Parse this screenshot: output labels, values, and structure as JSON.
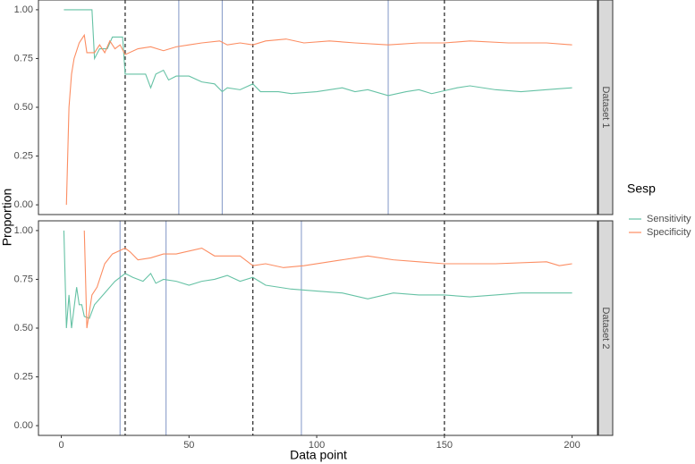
{
  "chart_data": {
    "type": "line",
    "xlabel": "Data point",
    "ylabel": "Proportion",
    "legend_title": "Sesp",
    "legend": [
      {
        "name": "Sensitivity",
        "color": "#66c2a5"
      },
      {
        "name": "Specificity",
        "color": "#fc8d62"
      }
    ],
    "xlim": [
      -8.95,
      209.95
    ],
    "xticks": [
      0,
      50,
      100,
      150,
      200
    ],
    "ylim": [
      -0.05,
      1.05
    ],
    "yticks": [
      {
        "value": 0,
        "label": "0.00"
      },
      {
        "value": 0.25,
        "label": "0.25"
      },
      {
        "value": 0.5,
        "label": "0.50"
      },
      {
        "value": 0.75,
        "label": "0.75"
      },
      {
        "value": 1,
        "label": "1.00"
      }
    ],
    "grid": false,
    "dashed_color": "#333333",
    "solid_color": "#8da0cb",
    "panels": [
      {
        "label": "Dataset 1",
        "dashed_vlines": [
          25,
          75,
          150
        ],
        "solid_vlines": [
          46,
          63,
          128
        ],
        "series": [
          {
            "x": [
              1,
              12,
              13,
              15,
              18,
              20,
              24,
              25,
              33,
              35,
              37,
              40,
              42,
              45,
              50,
              55,
              60,
              63,
              65,
              70,
              75,
              78,
              85,
              90,
              100,
              110,
              115,
              120,
              128,
              135,
              140,
              145,
              155,
              160,
              170,
              180,
              190,
              200
            ],
            "values": [
              1.0,
              1.0,
              0.75,
              0.8,
              0.8,
              0.86,
              0.86,
              0.67,
              0.67,
              0.6,
              0.67,
              0.69,
              0.64,
              0.66,
              0.66,
              0.63,
              0.62,
              0.58,
              0.6,
              0.59,
              0.62,
              0.58,
              0.58,
              0.57,
              0.58,
              0.6,
              0.58,
              0.59,
              0.56,
              0.58,
              0.59,
              0.57,
              0.6,
              0.61,
              0.59,
              0.58,
              0.59,
              0.6
            ]
          },
          {
            "x": [
              2,
              3,
              4,
              5,
              7,
              9,
              10,
              13,
              15,
              17,
              19,
              21,
              23,
              25,
              30,
              35,
              40,
              45,
              50,
              55,
              62,
              65,
              70,
              75,
              80,
              88,
              95,
              105,
              115,
              128,
              140,
              150,
              160,
              175,
              190,
              200
            ],
            "values": [
              0.0,
              0.5,
              0.67,
              0.75,
              0.83,
              0.87,
              0.78,
              0.78,
              0.82,
              0.78,
              0.84,
              0.8,
              0.82,
              0.77,
              0.8,
              0.81,
              0.79,
              0.81,
              0.82,
              0.83,
              0.84,
              0.82,
              0.83,
              0.82,
              0.84,
              0.85,
              0.83,
              0.84,
              0.83,
              0.82,
              0.83,
              0.83,
              0.84,
              0.83,
              0.83,
              0.82
            ]
          }
        ]
      },
      {
        "label": "Dataset 2",
        "dashed_vlines": [
          25,
          75,
          150
        ],
        "solid_vlines": [
          23,
          41,
          94
        ],
        "series": [
          {
            "x": [
              1,
              2,
              3,
              4,
              6,
              7,
              8,
              9,
              11,
              13,
              17,
              21,
              25,
              28,
              32,
              35,
              37,
              40,
              45,
              50,
              55,
              60,
              65,
              70,
              75,
              80,
              90,
              100,
              110,
              120,
              130,
              140,
              150,
              160,
              170,
              180,
              190,
              200
            ],
            "values": [
              1.0,
              0.5,
              0.67,
              0.5,
              0.71,
              0.62,
              0.62,
              0.56,
              0.55,
              0.62,
              0.68,
              0.74,
              0.78,
              0.76,
              0.74,
              0.78,
              0.73,
              0.75,
              0.74,
              0.72,
              0.74,
              0.75,
              0.77,
              0.74,
              0.76,
              0.72,
              0.7,
              0.69,
              0.68,
              0.65,
              0.68,
              0.67,
              0.67,
              0.66,
              0.67,
              0.68,
              0.68,
              0.68
            ]
          },
          {
            "x": [
              9,
              10,
              12,
              14,
              17,
              20,
              25,
              27,
              30,
              35,
              40,
              45,
              55,
              60,
              70,
              75,
              80,
              87,
              95,
              110,
              120,
              130,
              140,
              150,
              170,
              190,
              195,
              200
            ],
            "values": [
              1.0,
              0.5,
              0.67,
              0.71,
              0.83,
              0.88,
              0.91,
              0.89,
              0.85,
              0.86,
              0.88,
              0.88,
              0.91,
              0.87,
              0.87,
              0.82,
              0.83,
              0.81,
              0.82,
              0.85,
              0.87,
              0.85,
              0.84,
              0.83,
              0.83,
              0.84,
              0.82,
              0.83
            ]
          }
        ]
      }
    ]
  }
}
